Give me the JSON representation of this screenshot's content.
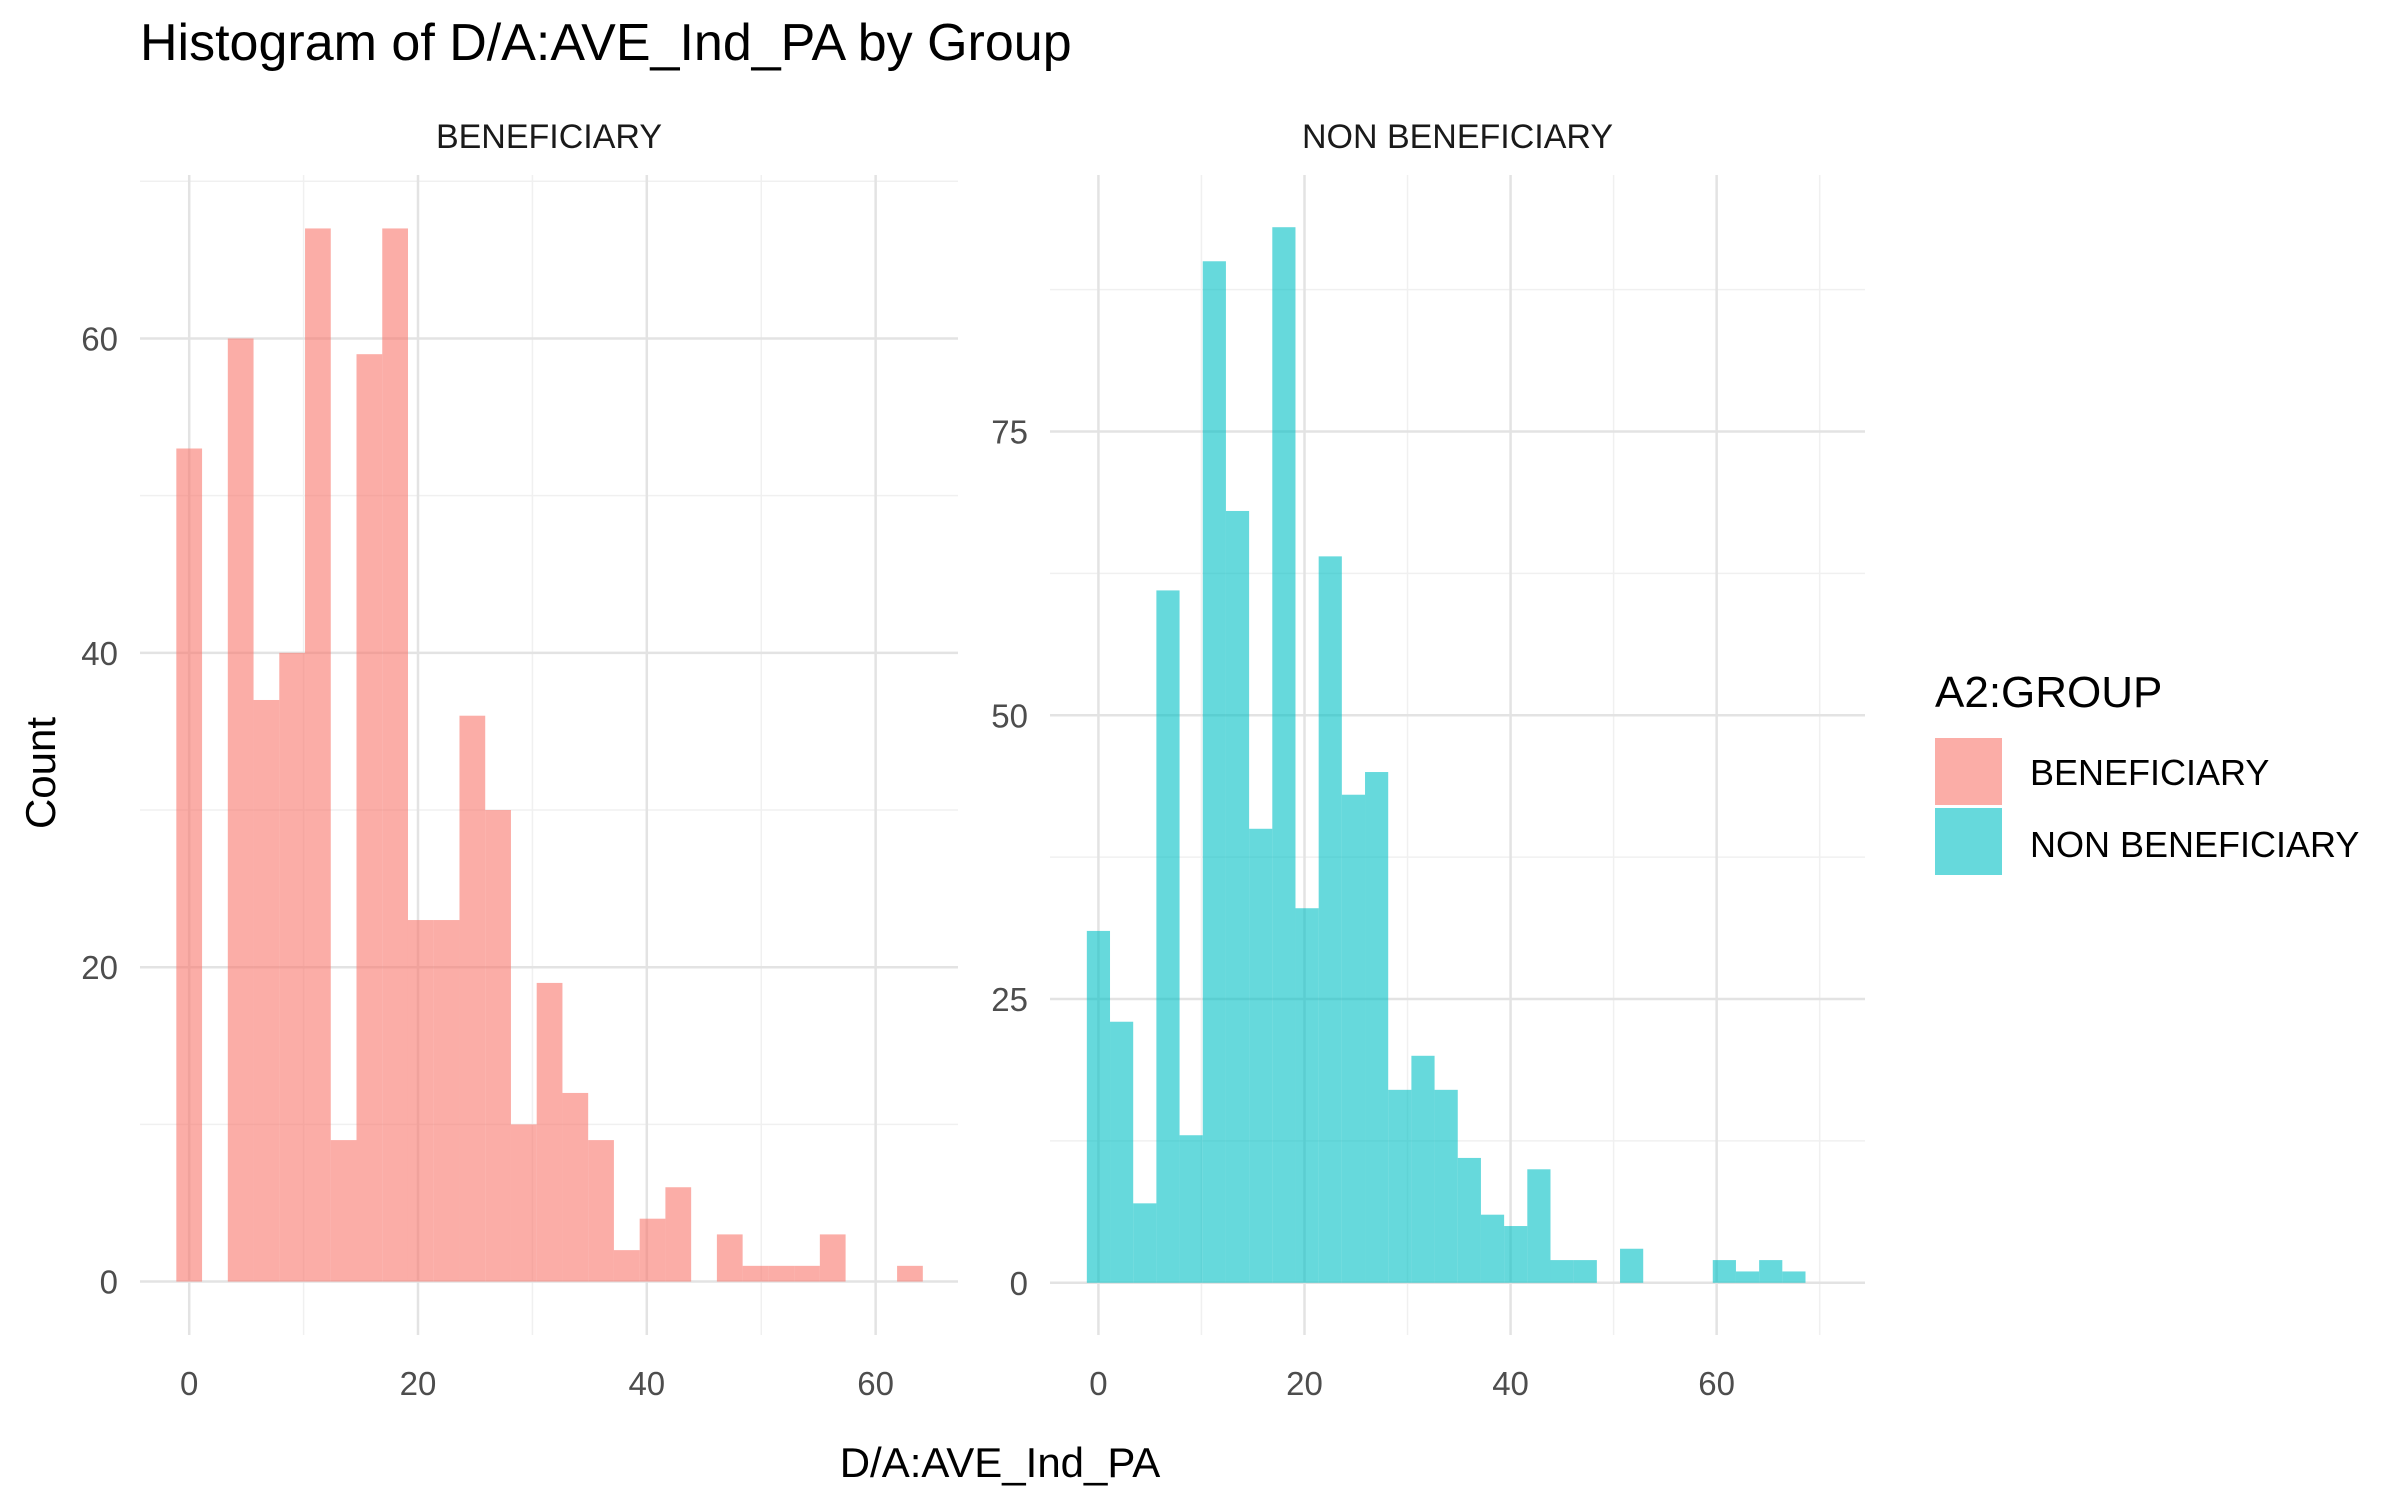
{
  "chart_data": {
    "type": "bar",
    "title": "Histogram of D/A:AVE_Ind_PA by Group",
    "xlabel": "D/A:AVE_Ind_PA",
    "ylabel": "Count",
    "bin_width": 2.25,
    "grid": true,
    "legend": {
      "title": "A2:GROUP",
      "position": "right",
      "items": [
        {
          "label": "BENEFICIARY",
          "color": "#F8766D"
        },
        {
          "label": "NON BENEFICIARY",
          "color": "#00BFC4"
        }
      ]
    },
    "panels": [
      {
        "strip": "BENEFICIARY",
        "color": "#F8766D",
        "xlim": [
          -4.3,
          67.2
        ],
        "ylim": [
          -3.4,
          70.4
        ],
        "x_ticks": [
          0,
          20,
          40,
          60
        ],
        "y_ticks": [
          0,
          20,
          40,
          60
        ],
        "x": [
          0.0,
          2.25,
          4.5,
          6.75,
          9.0,
          11.25,
          13.5,
          15.75,
          18.0,
          20.25,
          22.5,
          24.75,
          27.0,
          29.25,
          31.5,
          33.75,
          36.0,
          38.25,
          40.5,
          42.75,
          45.0,
          47.25,
          49.5,
          51.75,
          54.0,
          56.25,
          58.5,
          60.75,
          63.0
        ],
        "values": [
          53,
          0,
          60,
          37,
          40,
          67,
          9,
          59,
          67,
          23,
          23,
          36,
          30,
          10,
          19,
          12,
          9,
          2,
          4,
          6,
          0,
          3,
          1,
          1,
          1,
          3,
          0,
          0,
          1
        ]
      },
      {
        "strip": "NON BENEFICIARY",
        "color": "#00BFC4",
        "xlim": [
          -4.7,
          74.4
        ],
        "ylim": [
          -4.6,
          97.6
        ],
        "x_ticks": [
          0,
          20,
          40,
          60
        ],
        "y_ticks": [
          0,
          25,
          50,
          75
        ],
        "x": [
          0.0,
          2.25,
          4.5,
          6.75,
          9.0,
          11.25,
          13.5,
          15.75,
          18.0,
          20.25,
          22.5,
          24.75,
          27.0,
          29.25,
          31.5,
          33.75,
          36.0,
          38.25,
          40.5,
          42.75,
          45.0,
          47.25,
          49.5,
          51.75,
          54.0,
          56.25,
          58.5,
          60.75,
          63.0,
          65.25,
          67.5,
          69.75
        ],
        "values": [
          31,
          23,
          7,
          61,
          13,
          90,
          68,
          40,
          93,
          33,
          64,
          43,
          45,
          17,
          20,
          17,
          11,
          6,
          5,
          10,
          2,
          2,
          0,
          3,
          0,
          0,
          0,
          2,
          1,
          2,
          1,
          0
        ]
      }
    ]
  }
}
